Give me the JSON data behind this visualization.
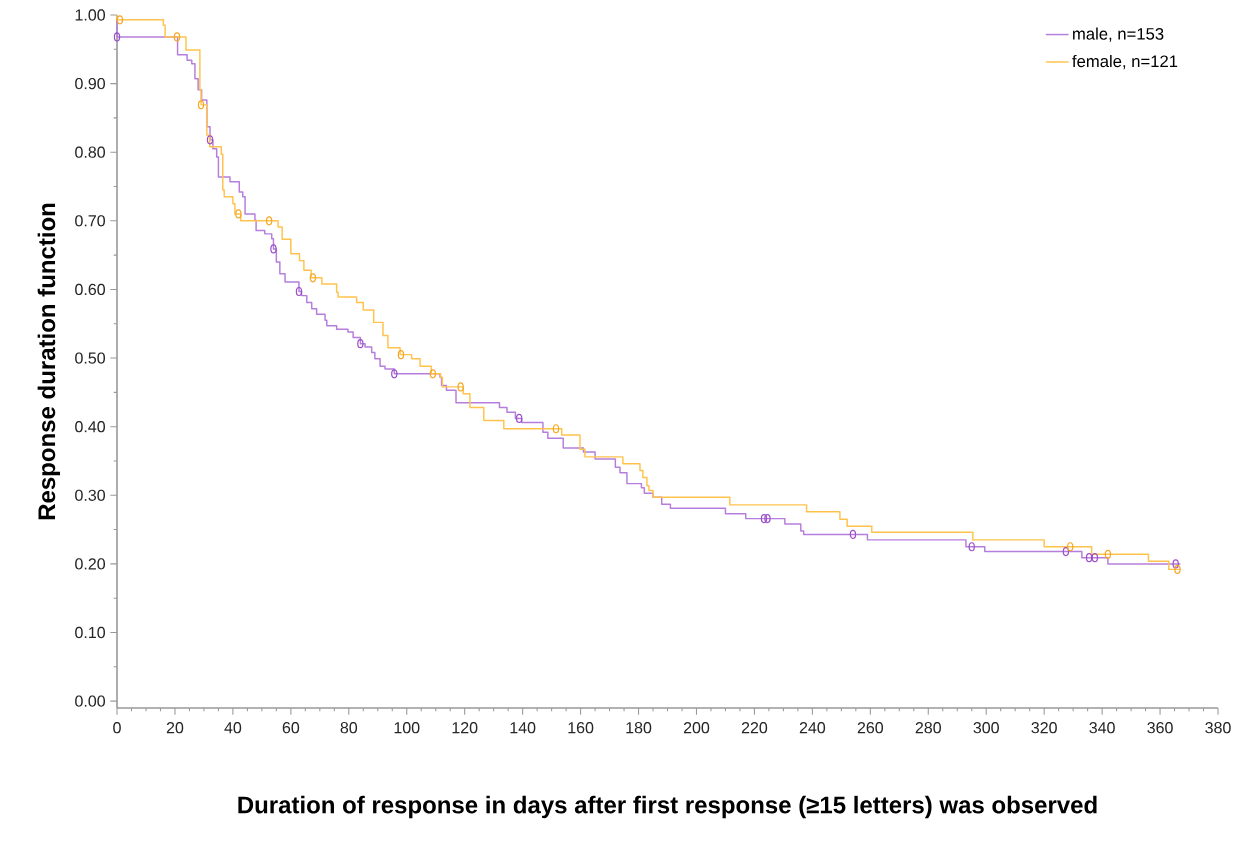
{
  "chart_data": {
    "type": "step",
    "xlabel": "Duration of response in days after first response (≥15 letters) was observed",
    "ylabel": "Response duration function",
    "xlim": [
      0,
      380
    ],
    "ylim": [
      -0.01,
      1.0
    ],
    "xticks": [
      0,
      20,
      40,
      60,
      80,
      100,
      120,
      140,
      160,
      180,
      200,
      220,
      240,
      260,
      280,
      300,
      320,
      340,
      360,
      380
    ],
    "yticks": [
      {
        "value": 0,
        "label": "0.00"
      },
      {
        "value": 0.1,
        "label": "0.10"
      },
      {
        "value": 0.2,
        "label": "0.20"
      },
      {
        "value": 0.3,
        "label": "0.30"
      },
      {
        "value": 0.4,
        "label": "0.40"
      },
      {
        "value": 0.5,
        "label": "0.50"
      },
      {
        "value": 0.6,
        "label": "0.60"
      },
      {
        "value": 0.7,
        "label": "0.70"
      },
      {
        "value": 0.8,
        "label": "0.80"
      },
      {
        "value": 0.9,
        "label": "0.90"
      },
      {
        "value": 1.0,
        "label": "1.00"
      }
    ],
    "legend": "top right",
    "series": [
      {
        "name": "male, n=153",
        "marker": "none",
        "color": "#b57edc",
        "x": [
          0,
          0,
          20.9,
          24.2,
          25.8,
          26.9,
          28,
          29.2,
          31,
          32.1,
          33.1,
          34.4,
          35,
          39,
          42.2,
          43.4,
          44.2,
          47.6,
          48,
          51,
          53.4,
          54,
          55,
          56.2,
          58,
          62.8,
          63.7,
          65.5,
          67.2,
          68.9,
          71.8,
          72.4,
          75.8,
          79.7,
          81.5,
          84,
          85.6,
          87.9,
          89,
          90.8,
          92.5,
          95.7,
          111.5,
          112,
          113.7,
          117,
          132,
          134.6,
          137.5,
          139.7,
          147,
          148.7,
          154,
          161,
          165,
          172,
          173.6,
          176,
          181,
          182,
          185,
          188,
          191,
          210,
          217,
          230.5,
          236,
          237,
          259,
          293,
          299.5,
          333,
          342,
          367
        ],
        "values": [
          1.0,
          0.968,
          0.942,
          0.934,
          0.929,
          0.907,
          0.891,
          0.876,
          0.837,
          0.818,
          0.805,
          0.793,
          0.764,
          0.757,
          0.742,
          0.735,
          0.71,
          0.701,
          0.686,
          0.681,
          0.674,
          0.659,
          0.64,
          0.623,
          0.611,
          0.597,
          0.591,
          0.581,
          0.572,
          0.564,
          0.555,
          0.547,
          0.542,
          0.538,
          0.53,
          0.521,
          0.516,
          0.508,
          0.499,
          0.488,
          0.484,
          0.477,
          0.472,
          0.46,
          0.453,
          0.435,
          0.428,
          0.421,
          0.412,
          0.406,
          0.392,
          0.383,
          0.369,
          0.363,
          0.353,
          0.341,
          0.333,
          0.317,
          0.311,
          0.303,
          0.297,
          0.287,
          0.281,
          0.273,
          0.266,
          0.258,
          0.248,
          0.243,
          0.235,
          0.225,
          0.218,
          0.209,
          0.2,
          0.2
        ]
      },
      {
        "name": "female, n=121",
        "marker": "none",
        "color": "#ffc34d",
        "x": [
          0,
          0,
          16,
          16.6,
          23.8,
          28.6,
          29,
          31,
          32,
          36,
          36.5,
          37,
          40,
          40.7,
          42.7,
          55.6,
          57,
          60,
          63,
          64.5,
          67,
          70.7,
          75.8,
          76.3,
          82.7,
          85,
          88.6,
          91.8,
          93.5,
          97.7,
          101.7,
          104.6,
          108.5,
          111.7,
          112.3,
          119.5,
          121.8,
          126.6,
          133.5,
          153.5,
          159.8,
          161.5,
          174.6,
          180.5,
          181.5,
          182.9,
          183.6,
          185,
          211.5,
          238,
          249.5,
          252,
          260.5,
          295.4,
          320,
          336.4,
          356,
          363,
          367
        ],
        "values": [
          1.0,
          0.993,
          0.985,
          0.968,
          0.949,
          0.891,
          0.869,
          0.825,
          0.808,
          0.797,
          0.745,
          0.735,
          0.725,
          0.71,
          0.7,
          0.691,
          0.673,
          0.652,
          0.642,
          0.628,
          0.617,
          0.608,
          0.596,
          0.589,
          0.581,
          0.57,
          0.552,
          0.533,
          0.515,
          0.505,
          0.499,
          0.488,
          0.477,
          0.472,
          0.458,
          0.448,
          0.428,
          0.409,
          0.397,
          0.388,
          0.367,
          0.356,
          0.346,
          0.336,
          0.326,
          0.314,
          0.307,
          0.297,
          0.286,
          0.276,
          0.265,
          0.255,
          0.246,
          0.235,
          0.225,
          0.214,
          0.204,
          0.192,
          0.192
        ]
      },
      {
        "type": "scatter",
        "marker": "circle",
        "color": "#9b4dca",
        "x": [
          0,
          32.1,
          54,
          62.8,
          84,
          95.7,
          138.8,
          223.3,
          224.5,
          254,
          295,
          327.5,
          335.5,
          337.5,
          365.4
        ],
        "values": [
          0.968,
          0.818,
          0.659,
          0.597,
          0.521,
          0.477,
          0.412,
          0.266,
          0.266,
          0.243,
          0.225,
          0.218,
          0.209,
          0.209,
          0.2
        ]
      },
      {
        "type": "scatter",
        "marker": "circle",
        "color": "#f5a623",
        "x": [
          1,
          20.7,
          29,
          41.9,
          52.5,
          67.6,
          98,
          109,
          118.6,
          151.5,
          329,
          342,
          366
        ],
        "values": [
          0.993,
          0.968,
          0.869,
          0.71,
          0.7,
          0.617,
          0.505,
          0.477,
          0.458,
          0.397,
          0.225,
          0.214,
          0.192
        ]
      }
    ]
  }
}
